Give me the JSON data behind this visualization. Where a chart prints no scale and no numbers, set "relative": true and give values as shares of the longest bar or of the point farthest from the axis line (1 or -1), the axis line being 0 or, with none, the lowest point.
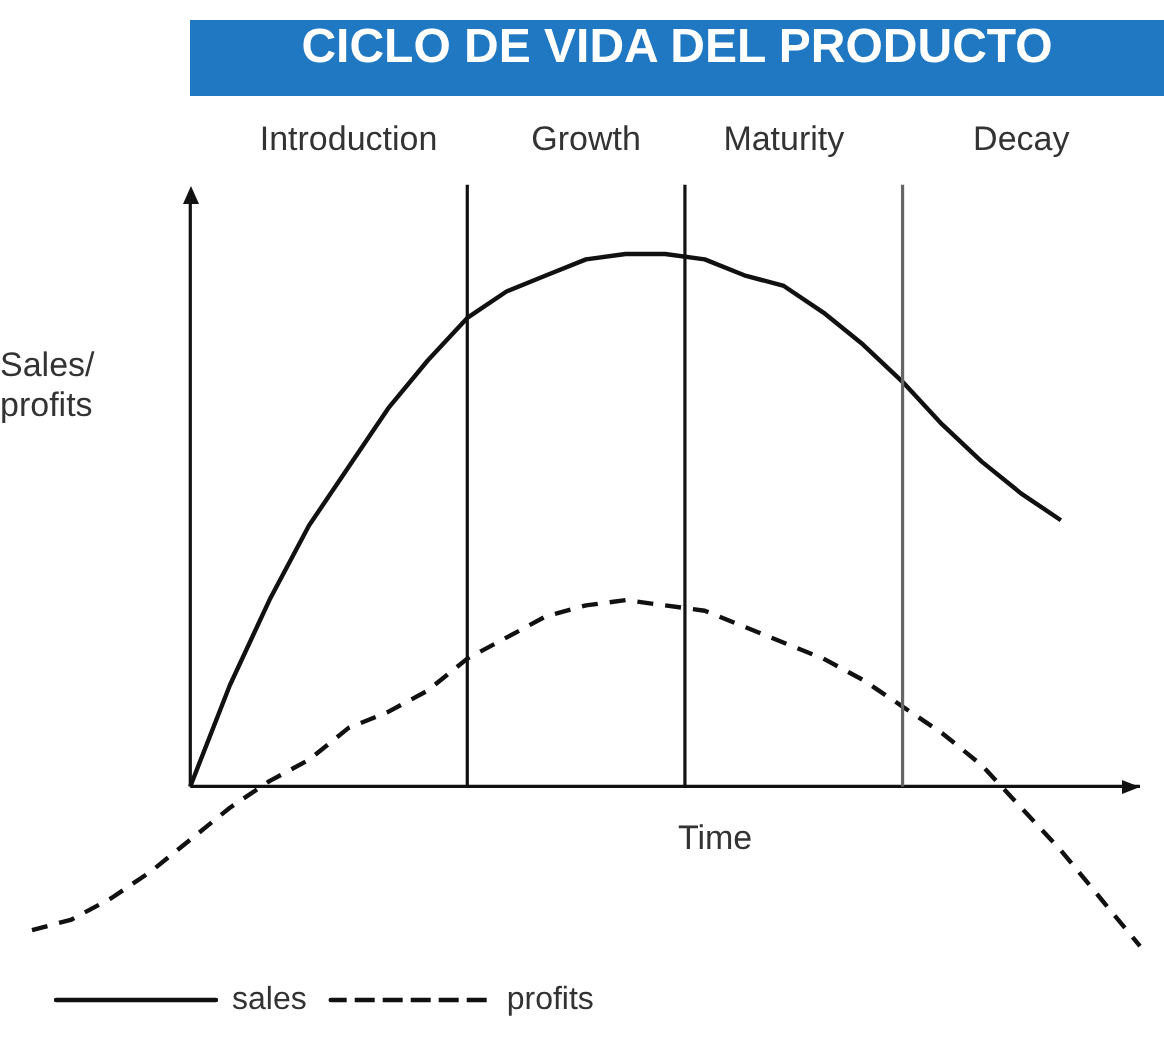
{
  "chart_data": {
    "type": "line",
    "title": "CICLO DE VIDA DEL PRODUCTO",
    "xlabel": "Time",
    "ylabel": "Sales/ profits",
    "relative": true,
    "tick_labels": "x",
    "legend": "bottom left",
    "marker": "none",
    "categories": [
      null,
      null,
      null,
      null,
      null,
      null,
      null,
      null,
      "Introduction",
      null,
      null,
      null,
      null,
      null,
      "Growth",
      null,
      null,
      null,
      null,
      "Maturity",
      null,
      null,
      null,
      null,
      null,
      "Decay",
      null,
      null,
      null
    ],
    "series": [
      {
        "name": "sales",
        "color": "#111111",
        "line_style": "solid",
        "values": [
          null,
          null,
          null,
          null,
          0,
          0.19,
          0.35,
          0.49,
          0.6,
          0.71,
          0.8,
          0.88,
          0.93,
          0.96,
          0.99,
          1,
          1,
          0.99,
          0.96,
          0.94,
          0.89,
          0.83,
          0.76,
          0.68,
          0.61,
          0.55,
          0.5,
          null,
          null
        ]
      },
      {
        "name": "profits",
        "color": "#111111",
        "line_style": "dashed",
        "values": [
          -0.27,
          -0.25,
          -0.21,
          -0.16,
          -0.1,
          -0.04,
          0.01,
          0.05,
          0.11,
          0.14,
          0.18,
          0.24,
          0.28,
          0.32,
          0.34,
          0.35,
          0.34,
          0.33,
          0.3,
          0.27,
          0.24,
          0.2,
          0.15,
          0.1,
          0.04,
          -0.04,
          -0.12,
          -0.21,
          -0.3
        ]
      }
    ]
  }
}
